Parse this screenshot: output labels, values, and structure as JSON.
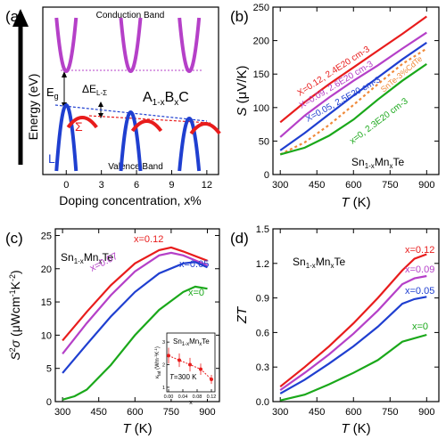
{
  "chart_data": [
    {
      "panel": "(a)",
      "type": "diagram",
      "xlabel": "Doping concentration, x%",
      "ylabel": "Energy (eV)",
      "x_ticks": [
        "0",
        "3",
        "6",
        "9",
        "12"
      ],
      "xlim": [
        -2,
        13
      ],
      "labels": {
        "conduction": "Conduction Band",
        "valence": "Valence Band",
        "formula": "A1-xBxC",
        "eg": "Eg",
        "delta": "ΔEL-Σ",
        "sigma": "Σ",
        "L": "L"
      },
      "band_positions_x": [
        0,
        5.5,
        10.5
      ],
      "colors": {
        "conduction": "#b540c8",
        "L_band": "#1f3fd0",
        "sigma_band": "#e81c1c",
        "guide_top": "#b540c8",
        "guide_blue": "#1f3fd0",
        "guide_red": "#e81c1c"
      }
    },
    {
      "panel": "(b)",
      "type": "line",
      "xlabel": "T (K)",
      "ylabel": "S (μV/K)",
      "xlim": [
        270,
        950
      ],
      "ylim": [
        0,
        250
      ],
      "x_ticks": [
        300,
        450,
        600,
        750,
        900
      ],
      "y_ticks": [
        0,
        50,
        100,
        150,
        200,
        250
      ],
      "annotation": "Sn1-xMnxTe",
      "series": [
        {
          "name": "X=0.12, 2.4E20 cm-3",
          "color": "#e81c1c",
          "dashed": false,
          "x": [
            300,
            400,
            500,
            600,
            700,
            800,
            900
          ],
          "y": [
            78,
            108,
            135,
            160,
            185,
            210,
            236
          ]
        },
        {
          "name": "X=0.09, 2.6E20 cm-3",
          "color": "#b540c8",
          "dashed": false,
          "x": [
            300,
            400,
            500,
            600,
            700,
            800,
            900
          ],
          "y": [
            56,
            88,
            115,
            140,
            163,
            188,
            212
          ]
        },
        {
          "name": "X=0.05, 2.5E20 cm-3",
          "color": "#1f3fd0",
          "dashed": false,
          "x": [
            300,
            400,
            500,
            600,
            700,
            800,
            900
          ],
          "y": [
            36,
            62,
            90,
            118,
            145,
            172,
            197
          ]
        },
        {
          "name": "SnTe-3%CdTe",
          "color": "#f08a3a",
          "dashed": true,
          "x": [
            300,
            400,
            500,
            600,
            700,
            800,
            900
          ],
          "y": [
            30,
            48,
            74,
            104,
            135,
            165,
            188
          ]
        },
        {
          "name": "x=0, 2.3E20 cm-3",
          "color": "#1aa81a",
          "dashed": false,
          "x": [
            300,
            400,
            500,
            600,
            700,
            800,
            900
          ],
          "y": [
            30,
            40,
            58,
            82,
            112,
            140,
            165
          ]
        }
      ]
    },
    {
      "panel": "(c)",
      "type": "line",
      "xlabel": "T (K)",
      "ylabel": "S2σ (μWcm-1K-2)",
      "xlim": [
        270,
        950
      ],
      "ylim": [
        0,
        26
      ],
      "x_ticks": [
        300,
        450,
        600,
        750,
        900
      ],
      "y_ticks": [
        0,
        5,
        10,
        15,
        20,
        25
      ],
      "annotation": "Sn1-xMnxTe",
      "series": [
        {
          "name": "x=0.12",
          "color": "#e81c1c",
          "x": [
            300,
            400,
            500,
            600,
            700,
            750,
            800,
            900
          ],
          "y": [
            9.2,
            13.5,
            17.5,
            20.8,
            22.8,
            23.2,
            22.6,
            21.2
          ]
        },
        {
          "name": "x=0.07",
          "color": "#b540c8",
          "x": [
            300,
            400,
            500,
            600,
            700,
            750,
            800,
            900
          ],
          "y": [
            7.2,
            11.8,
            16.0,
            19.6,
            22.0,
            22.4,
            22.0,
            20.5
          ]
        },
        {
          "name": "x=0.05",
          "color": "#1f3fd0",
          "x": [
            300,
            400,
            500,
            600,
            700,
            800,
            850,
            900
          ],
          "y": [
            4.3,
            8.6,
            12.8,
            16.5,
            19.3,
            20.8,
            21.0,
            20.2
          ]
        },
        {
          "name": "x=0",
          "color": "#1aa81a",
          "x": [
            300,
            350,
            400,
            500,
            600,
            700,
            800,
            850,
            900
          ],
          "y": [
            0.3,
            0.8,
            1.8,
            5.5,
            10.0,
            13.8,
            16.5,
            17.3,
            17.0
          ]
        }
      ],
      "inset": {
        "title": "Sn1-xMnxTe",
        "note": "T=300 K",
        "xlabel": "x",
        "ylabel": "κlat (Wm-1K-1)",
        "x_ticks": [
          "0.00",
          "0.04",
          "0.08",
          "0.12"
        ],
        "y_ticks": [
          "1",
          "2",
          "3"
        ],
        "xlim": [
          -0.005,
          0.13
        ],
        "ylim": [
          0.8,
          3.4
        ],
        "points": {
          "x": [
            0.0,
            0.03,
            0.06,
            0.09,
            0.12
          ],
          "y": [
            2.4,
            2.2,
            2.0,
            1.8,
            1.35
          ],
          "err": [
            0.35,
            0.3,
            0.3,
            0.25,
            0.2
          ]
        },
        "color": "#e81c1c"
      }
    },
    {
      "panel": "(d)",
      "type": "line",
      "xlabel": "T (K)",
      "ylabel": "ZT",
      "xlim": [
        270,
        950
      ],
      "ylim": [
        0,
        1.5
      ],
      "x_ticks": [
        300,
        450,
        600,
        750,
        900
      ],
      "y_ticks": [
        "0.0",
        "0.3",
        "0.6",
        "0.9",
        "1.2",
        "1.5"
      ],
      "annotation": "Sn1-xMnxTe",
      "series": [
        {
          "name": "x=0.12",
          "color": "#e81c1c",
          "x": [
            300,
            400,
            500,
            600,
            700,
            800,
            850,
            900
          ],
          "y": [
            0.13,
            0.3,
            0.48,
            0.68,
            0.9,
            1.14,
            1.24,
            1.28
          ]
        },
        {
          "name": "x=0.09",
          "color": "#b540c8",
          "x": [
            300,
            400,
            500,
            600,
            700,
            800,
            850,
            900
          ],
          "y": [
            0.1,
            0.25,
            0.41,
            0.59,
            0.79,
            1.02,
            1.07,
            1.09
          ]
        },
        {
          "name": "x=0.05",
          "color": "#1f3fd0",
          "x": [
            300,
            400,
            500,
            600,
            700,
            800,
            850,
            900
          ],
          "y": [
            0.07,
            0.19,
            0.33,
            0.48,
            0.65,
            0.85,
            0.89,
            0.91
          ]
        },
        {
          "name": "x=0",
          "color": "#1aa81a",
          "x": [
            300,
            400,
            500,
            600,
            700,
            750,
            800,
            900
          ],
          "y": [
            0.01,
            0.06,
            0.15,
            0.25,
            0.36,
            0.44,
            0.52,
            0.58
          ]
        }
      ]
    }
  ]
}
